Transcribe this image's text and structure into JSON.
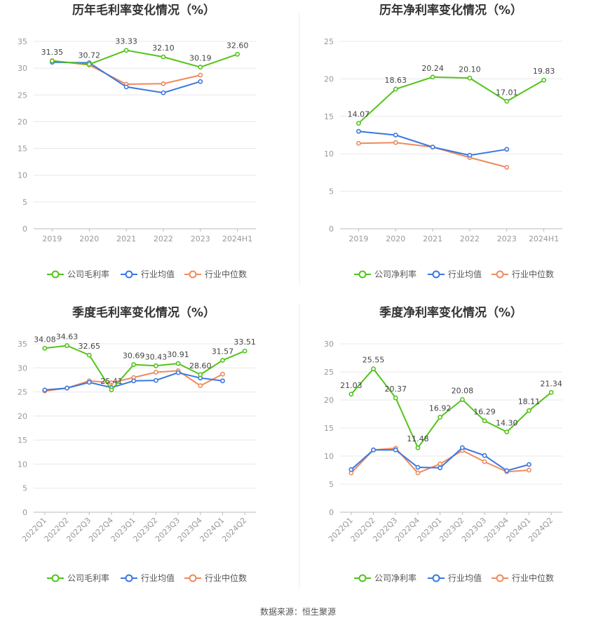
{
  "colors": {
    "company": "#52c41a",
    "industry_avg": "#3a78e0",
    "industry_median": "#f08a5d"
  },
  "legend": {
    "gross": [
      "公司毛利率",
      "行业均值",
      "行业中位数"
    ],
    "net": [
      "公司净利率",
      "行业均值",
      "行业中位数"
    ]
  },
  "source_text": "数据来源：恒生聚源",
  "chart_data": [
    {
      "type": "line",
      "title": "历年毛利率变化情况（%）",
      "categories": [
        "2019",
        "2020",
        "2021",
        "2022",
        "2023",
        "2024H1"
      ],
      "ylim": [
        0,
        35
      ],
      "yticks": [
        0,
        5,
        10,
        15,
        20,
        25,
        30,
        35
      ],
      "legend_key": "gross",
      "series": [
        {
          "name": "公司毛利率",
          "values": [
            31.35,
            30.72,
            33.33,
            32.1,
            30.19,
            32.6
          ]
        },
        {
          "name": "行业均值",
          "values": [
            31.1,
            31.0,
            26.5,
            25.4,
            27.5,
            null
          ]
        },
        {
          "name": "行业中位数",
          "values": [
            31.4,
            30.6,
            27.0,
            27.1,
            28.7,
            null
          ]
        }
      ]
    },
    {
      "type": "line",
      "title": "历年净利率变化情况（%）",
      "categories": [
        "2019",
        "2020",
        "2021",
        "2022",
        "2023",
        "2024H1"
      ],
      "ylim": [
        0,
        25
      ],
      "yticks": [
        0,
        5,
        10,
        15,
        20,
        25
      ],
      "legend_key": "net",
      "series": [
        {
          "name": "公司净利率",
          "values": [
            14.07,
            18.63,
            20.24,
            20.1,
            17.01,
            19.83
          ]
        },
        {
          "name": "行业均值",
          "values": [
            13.0,
            12.5,
            10.9,
            9.8,
            10.6,
            null
          ]
        },
        {
          "name": "行业中位数",
          "values": [
            11.4,
            11.5,
            10.9,
            9.5,
            8.2,
            null
          ]
        }
      ]
    },
    {
      "type": "line",
      "title": "季度毛利率变化情况（%）",
      "categories": [
        "2022Q1",
        "2022Q2",
        "2022Q3",
        "2022Q4",
        "2023Q1",
        "2023Q2",
        "2023Q3",
        "2023Q4",
        "2024Q1",
        "2024Q2"
      ],
      "ylim": [
        0,
        35
      ],
      "yticks": [
        0,
        5,
        10,
        15,
        20,
        25,
        30,
        35
      ],
      "legend_key": "gross",
      "series": [
        {
          "name": "公司毛利率",
          "values": [
            34.08,
            34.63,
            32.65,
            25.41,
            30.69,
            30.43,
            30.91,
            28.6,
            31.57,
            33.51
          ]
        },
        {
          "name": "行业均值",
          "values": [
            25.4,
            25.8,
            27.0,
            25.9,
            27.3,
            27.4,
            29.0,
            27.9,
            27.3,
            null
          ]
        },
        {
          "name": "行业中位数",
          "values": [
            25.2,
            25.8,
            27.3,
            26.9,
            28.0,
            29.1,
            29.4,
            26.3,
            28.7,
            null
          ]
        }
      ]
    },
    {
      "type": "line",
      "title": "季度净利率变化情况（%）",
      "categories": [
        "2022Q1",
        "2022Q2",
        "2022Q3",
        "2022Q4",
        "2023Q1",
        "2023Q2",
        "2023Q3",
        "2023Q4",
        "2024Q1",
        "2024Q2"
      ],
      "ylim": [
        0,
        30
      ],
      "yticks": [
        0,
        5,
        10,
        15,
        20,
        25,
        30
      ],
      "legend_key": "net",
      "series": [
        {
          "name": "公司净利率",
          "values": [
            21.03,
            25.55,
            20.37,
            11.48,
            16.92,
            20.08,
            16.29,
            14.3,
            18.11,
            21.34
          ]
        },
        {
          "name": "行业均值",
          "values": [
            7.6,
            11.1,
            11.1,
            8.0,
            7.9,
            11.5,
            10.1,
            7.4,
            8.5,
            null
          ]
        },
        {
          "name": "行业中位数",
          "values": [
            7.0,
            11.1,
            11.4,
            7.0,
            8.6,
            11.0,
            9.0,
            7.2,
            7.5,
            null
          ]
        }
      ]
    }
  ]
}
